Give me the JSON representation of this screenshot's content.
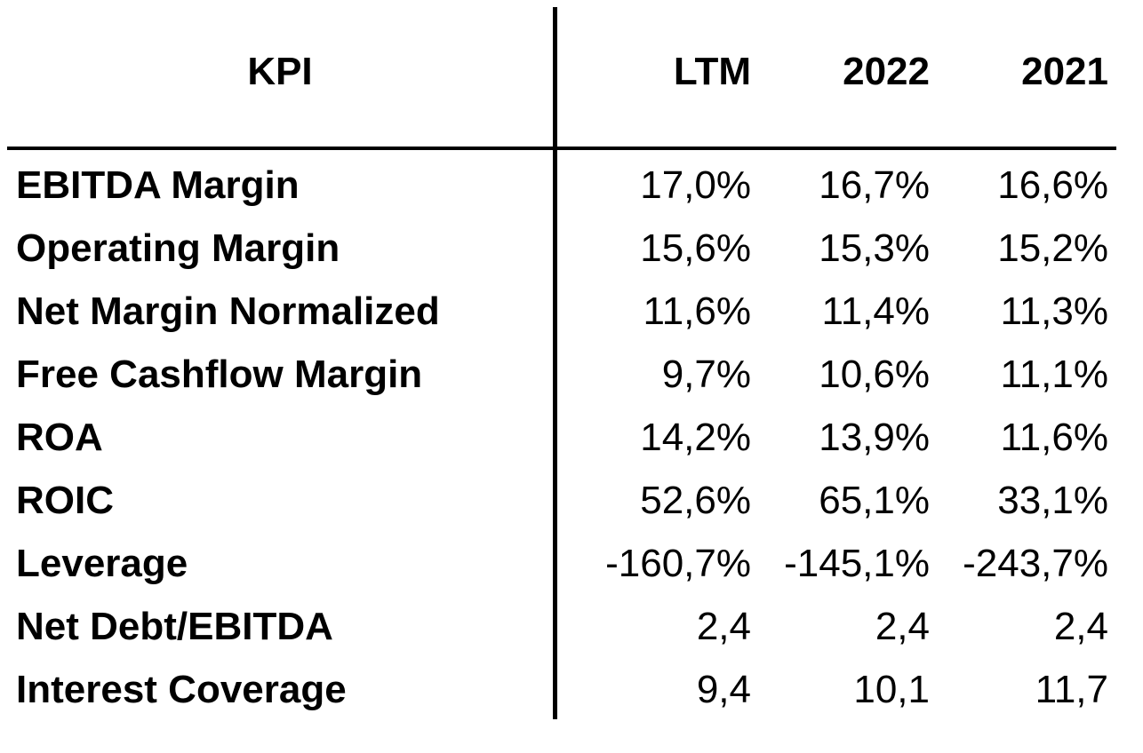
{
  "table": {
    "headers": {
      "kpi": "KPI",
      "ltm": "LTM",
      "y2022": "2022",
      "y2021": "2021"
    },
    "rows": [
      {
        "label": "EBITDA Margin",
        "ltm": "17,0%",
        "y2022": "16,7%",
        "y2021": "16,6%"
      },
      {
        "label": "Operating Margin",
        "ltm": "15,6%",
        "y2022": "15,3%",
        "y2021": "15,2%"
      },
      {
        "label": "Net Margin Normalized",
        "ltm": "11,6%",
        "y2022": "11,4%",
        "y2021": "11,3%"
      },
      {
        "label": "Free Cashflow Margin",
        "ltm": "9,7%",
        "y2022": "10,6%",
        "y2021": "11,1%"
      },
      {
        "label": "ROA",
        "ltm": "14,2%",
        "y2022": "13,9%",
        "y2021": "11,6%"
      },
      {
        "label": "ROIC",
        "ltm": "52,6%",
        "y2022": "65,1%",
        "y2021": "33,1%"
      },
      {
        "label": "Leverage",
        "ltm": "-160,7%",
        "y2022": "-145,1%",
        "y2021": "-243,7%"
      },
      {
        "label": "Net Debt/EBITDA",
        "ltm": "2,4",
        "y2022": "2,4",
        "y2021": "2,4"
      },
      {
        "label": "Interest Coverage",
        "ltm": "9,4",
        "y2022": "10,1",
        "y2021": "11,7"
      }
    ]
  }
}
